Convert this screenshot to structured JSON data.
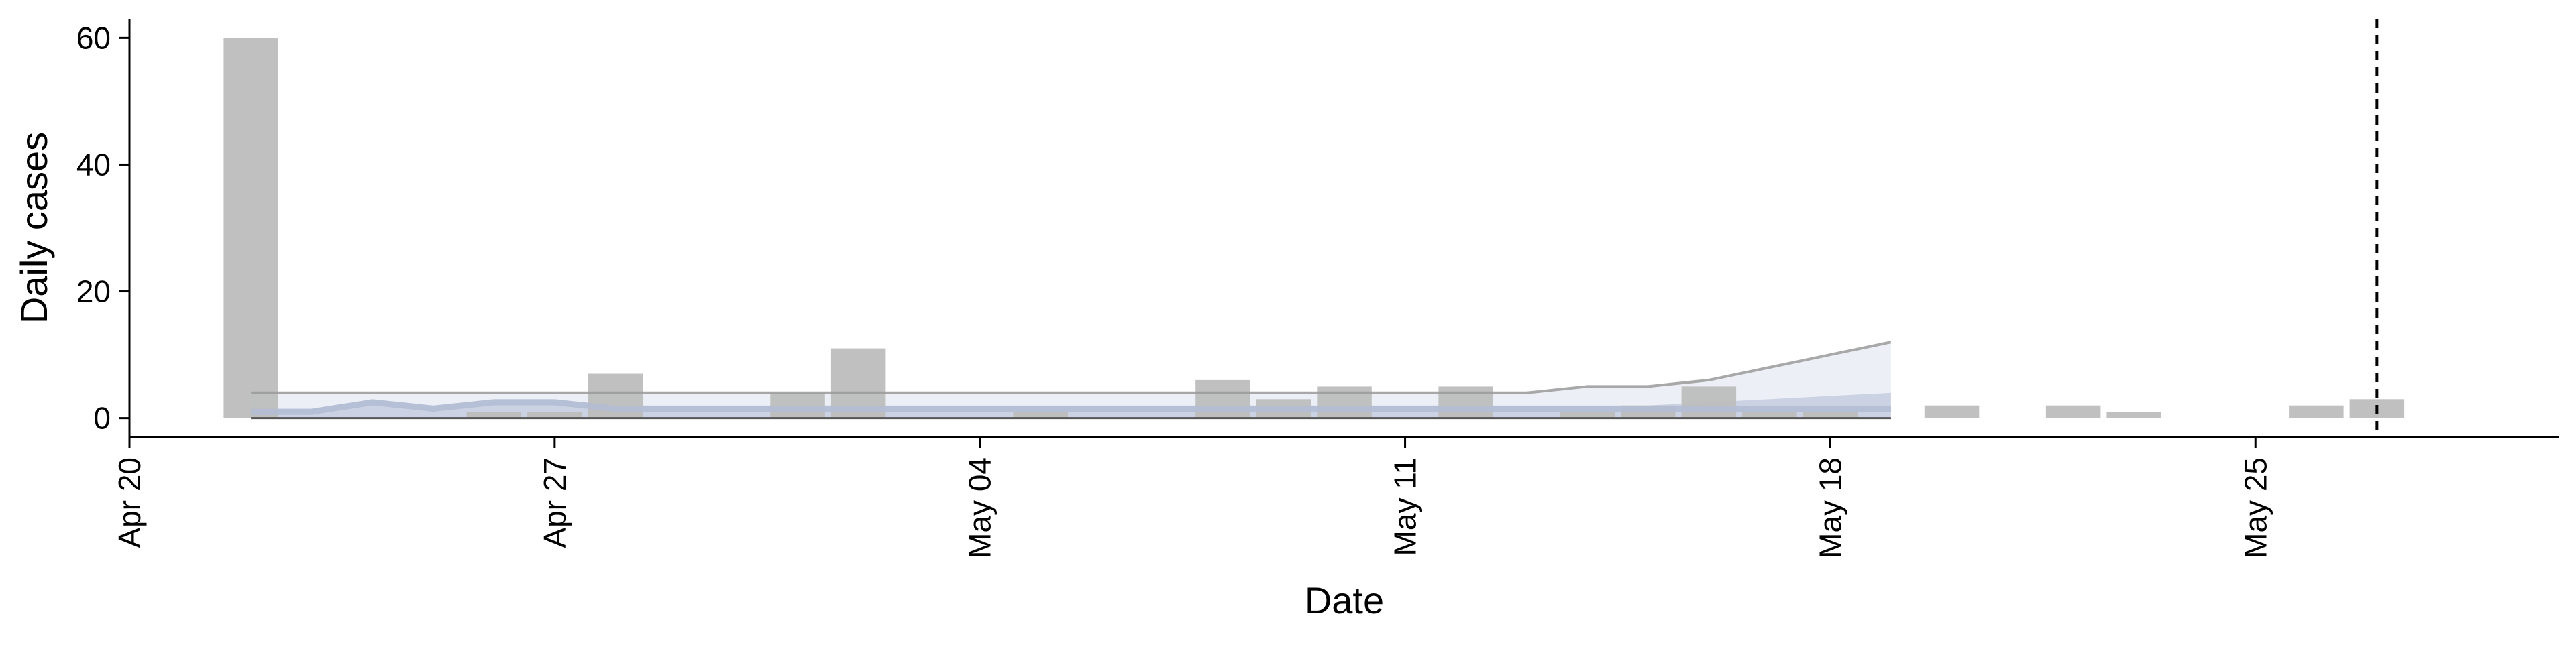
{
  "chart_data": {
    "type": "bar",
    "xlabel": "Date",
    "ylabel": "Daily cases",
    "x_axis": {
      "range": [
        "2020-04-20",
        "2020-05-30"
      ],
      "tick_dates": [
        "2020-04-20",
        "2020-04-27",
        "2020-05-04",
        "2020-05-11",
        "2020-05-18",
        "2020-05-25"
      ],
      "tick_labels": [
        "Apr 20",
        "Apr 27",
        "May 04",
        "May 11",
        "May 18",
        "May 25"
      ],
      "label_rotation_deg": -90
    },
    "y_axis": {
      "range": [
        -3,
        63
      ],
      "ticks": [
        0,
        20,
        40,
        60
      ]
    },
    "grid": false,
    "bar_color": "#bdbdbd",
    "observed_cases": [
      {
        "date": "2020-04-22",
        "value": 60
      },
      {
        "date": "2020-04-26",
        "value": 1
      },
      {
        "date": "2020-04-27",
        "value": 1
      },
      {
        "date": "2020-04-28",
        "value": 7
      },
      {
        "date": "2020-05-01",
        "value": 4
      },
      {
        "date": "2020-05-02",
        "value": 11
      },
      {
        "date": "2020-05-05",
        "value": 1
      },
      {
        "date": "2020-05-08",
        "value": 6
      },
      {
        "date": "2020-05-09",
        "value": 3
      },
      {
        "date": "2020-05-10",
        "value": 5
      },
      {
        "date": "2020-05-12",
        "value": 5
      },
      {
        "date": "2020-05-14",
        "value": 1
      },
      {
        "date": "2020-05-15",
        "value": 2
      },
      {
        "date": "2020-05-16",
        "value": 5
      },
      {
        "date": "2020-05-17",
        "value": 1
      },
      {
        "date": "2020-05-18",
        "value": 1
      },
      {
        "date": "2020-05-20",
        "value": 2
      },
      {
        "date": "2020-05-22",
        "value": 2
      },
      {
        "date": "2020-05-23",
        "value": 1
      },
      {
        "date": "2020-05-26",
        "value": 2
      },
      {
        "date": "2020-05-27",
        "value": 3
      }
    ],
    "estimate": {
      "dates": [
        "2020-04-22",
        "2020-04-23",
        "2020-04-24",
        "2020-04-25",
        "2020-04-26",
        "2020-04-27",
        "2020-04-28",
        "2020-04-29",
        "2020-04-30",
        "2020-05-01",
        "2020-05-02",
        "2020-05-03",
        "2020-05-04",
        "2020-05-05",
        "2020-05-06",
        "2020-05-07",
        "2020-05-08",
        "2020-05-09",
        "2020-05-10",
        "2020-05-11",
        "2020-05-12",
        "2020-05-13",
        "2020-05-14",
        "2020-05-15",
        "2020-05-16",
        "2020-05-17",
        "2020-05-18",
        "2020-05-19"
      ],
      "median": [
        1,
        1,
        2.5,
        1.5,
        2.5,
        2.5,
        1.5,
        1.5,
        1.5,
        1.5,
        1.5,
        1.5,
        1.5,
        1.5,
        1.5,
        1.5,
        1.5,
        1.5,
        1.5,
        1.5,
        1.5,
        1.5,
        1.5,
        1.5,
        1.5,
        1.5,
        1.5,
        1.5
      ],
      "inner_lower": [
        0,
        0,
        0,
        0,
        0,
        0,
        0,
        0,
        0,
        0,
        0,
        0,
        0,
        0,
        0,
        0,
        0,
        0,
        0,
        0,
        0,
        0,
        0,
        0,
        0,
        0,
        0,
        0
      ],
      "inner_upper": [
        1.5,
        1.5,
        3,
        2,
        3,
        3,
        2,
        2,
        2,
        2,
        2,
        2,
        2,
        2,
        2,
        2,
        2,
        2,
        2,
        2,
        2,
        2,
        2,
        2,
        2.5,
        3,
        3.5,
        4
      ],
      "outer_lower": [
        0,
        0,
        0,
        0,
        0,
        0,
        0,
        0,
        0,
        0,
        0,
        0,
        0,
        0,
        0,
        0,
        0,
        0,
        0,
        0,
        0,
        0,
        0,
        0,
        0,
        0,
        0,
        0
      ],
      "outer_upper": [
        4,
        4,
        4,
        4,
        4,
        4,
        4,
        4,
        4,
        4,
        4,
        4,
        4,
        4,
        4,
        4,
        4,
        4,
        4,
        4,
        4,
        4,
        5,
        5,
        6,
        8,
        10,
        12
      ],
      "median_color": "#b3bdd3",
      "inner_band_color": "#aab6cf",
      "outer_band_color": "#d6dcea",
      "outer_upper_line_color": "#9a9a9a"
    },
    "vertical_marker": {
      "date": "2020-05-27",
      "style": "dashed",
      "color": "#000000"
    }
  }
}
